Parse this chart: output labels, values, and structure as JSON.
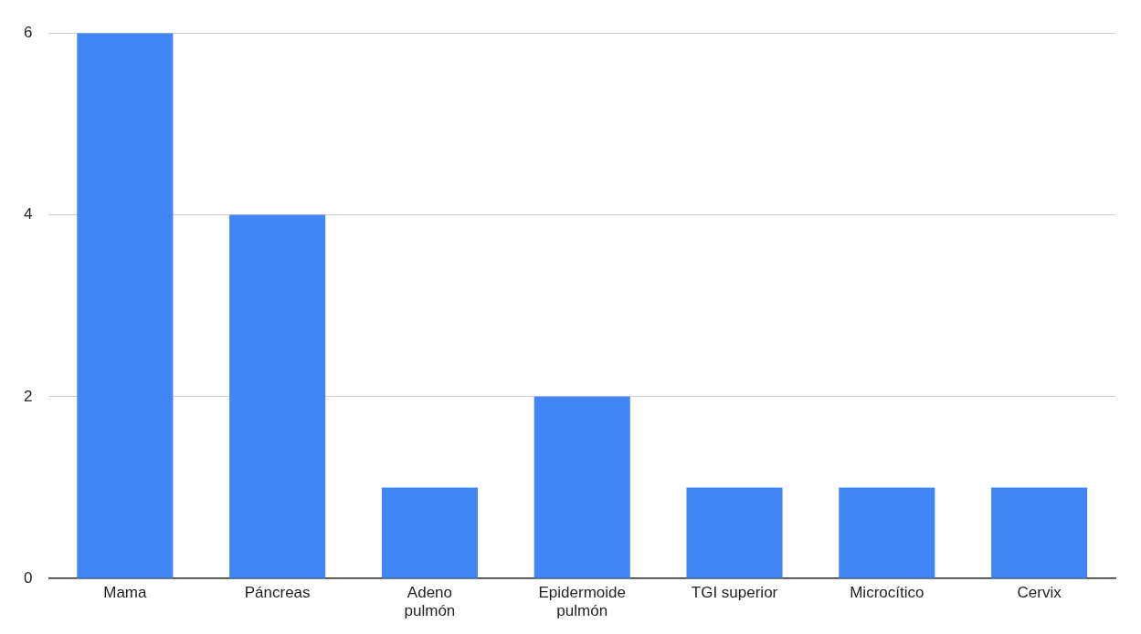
{
  "chart_data": {
    "type": "bar",
    "categories": [
      "Mama",
      "Páncreas",
      "Adeno\npulmón",
      "Epidermoide\npulmón",
      "TGI superior",
      "Microcítico",
      "Cervix"
    ],
    "values": [
      6,
      4,
      1,
      2,
      1,
      1,
      1
    ],
    "color": "#4285f4",
    "ylim": [
      0,
      6
    ],
    "yticks": [
      0,
      2,
      4,
      6
    ],
    "grid": "y",
    "legend": false
  }
}
